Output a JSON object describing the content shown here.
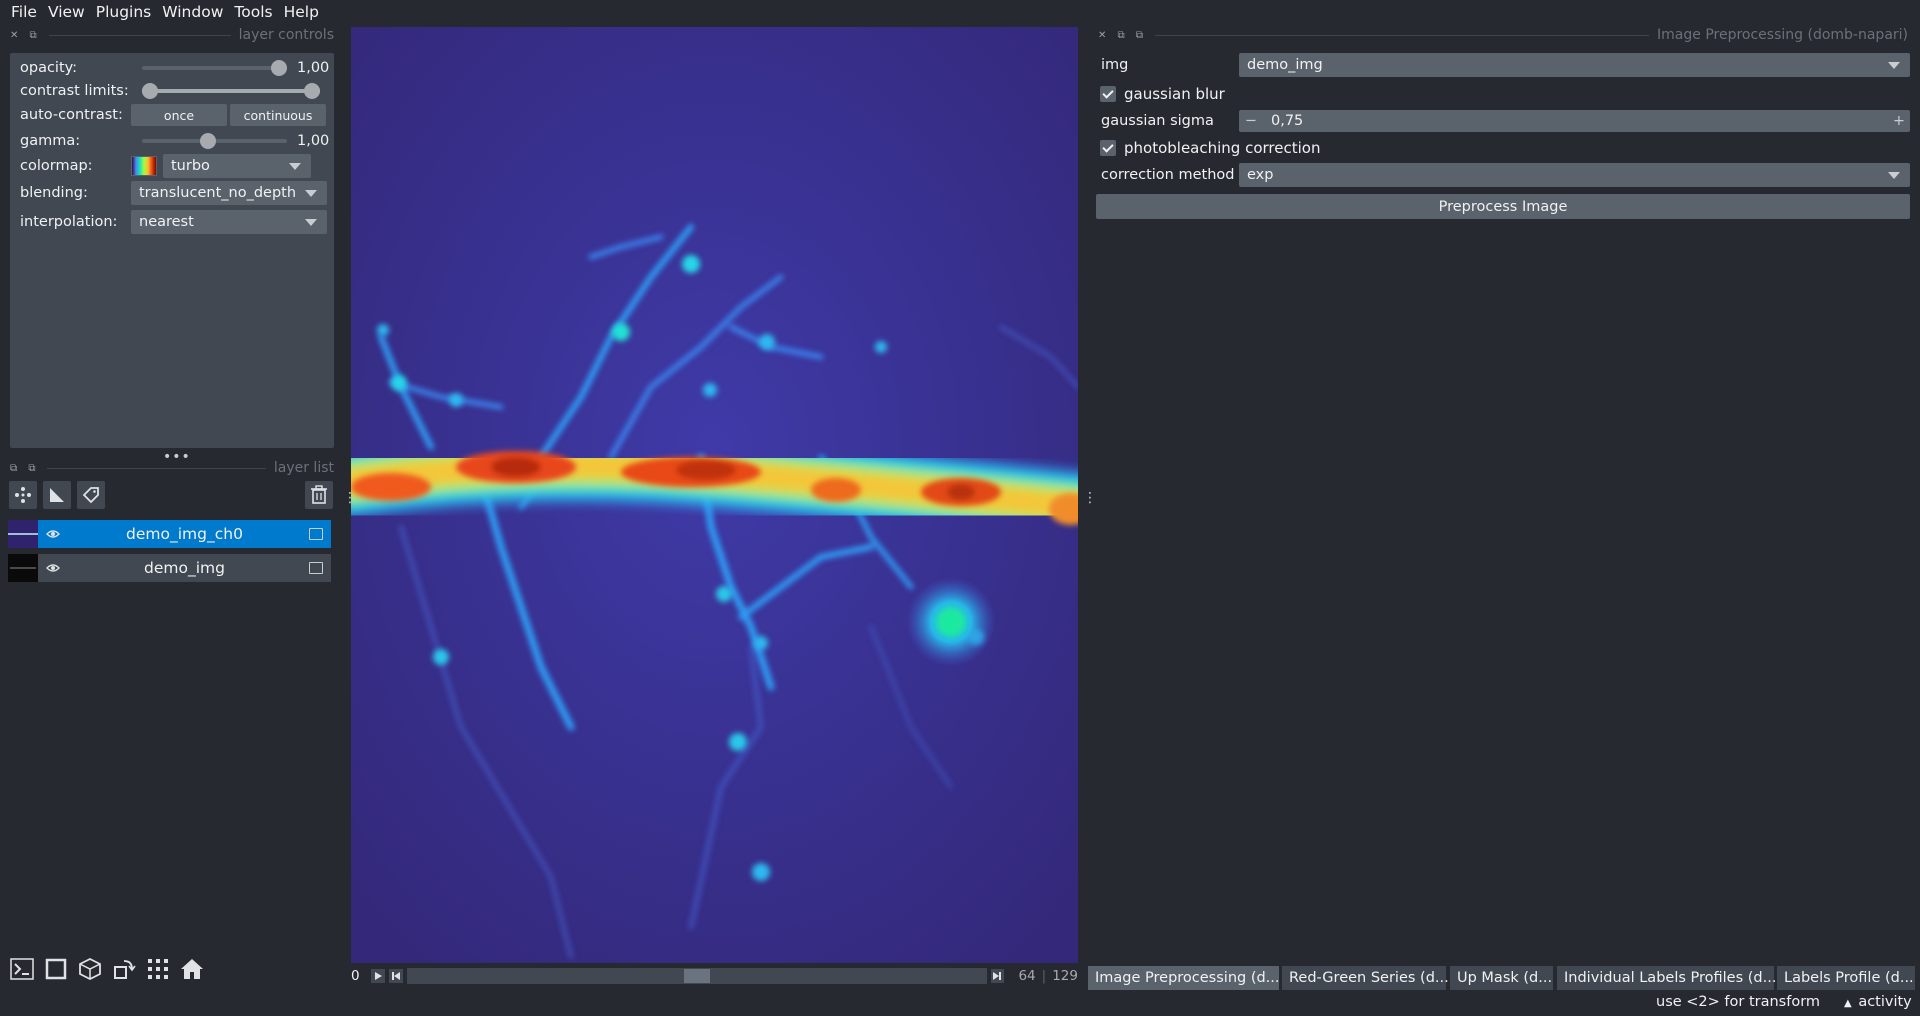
{
  "menu": [
    "File",
    "View",
    "Plugins",
    "Window",
    "Tools",
    "Help"
  ],
  "layer_controls": {
    "title": "layer controls",
    "opacity": {
      "label": "opacity:",
      "value": "1,00",
      "fraction": 1.0
    },
    "contrast_limits": {
      "label": "contrast limits:",
      "low_fraction": 0.0,
      "high_fraction": 1.0
    },
    "auto_contrast": {
      "label": "auto-contrast:",
      "once": "once",
      "continuous": "continuous"
    },
    "gamma": {
      "label": "gamma:",
      "value": "1,00",
      "fraction": 0.45
    },
    "colormap": {
      "label": "colormap:",
      "value": "turbo"
    },
    "blending": {
      "label": "blending:",
      "value": "translucent_no_depth"
    },
    "interpolation": {
      "label": "interpolation:",
      "value": "nearest"
    }
  },
  "layer_list": {
    "title": "layer list",
    "layers": [
      {
        "name": "demo_img_ch0",
        "selected": true,
        "visible": true
      },
      {
        "name": "demo_img",
        "selected": false,
        "visible": true
      }
    ]
  },
  "dims": {
    "current": "0",
    "value": "64",
    "max": "129",
    "fraction": 0.5
  },
  "plugin": {
    "title": "Image Preprocessing (domb-napari)",
    "img_label": "img",
    "img_value": "demo_img",
    "gaussian_blur_label": "gaussian blur",
    "gaussian_blur_checked": true,
    "gaussian_sigma_label": "gaussian sigma",
    "gaussian_sigma_value": "0,75",
    "minus": "−",
    "plus": "+",
    "photobleaching_label": "photobleaching correction",
    "photobleaching_checked": true,
    "correction_method_label": "correction method",
    "correction_method_value": "exp",
    "preprocess_button": "Preprocess Image"
  },
  "dock_tabs": [
    {
      "label": "Image Preprocessing (d...",
      "active": true
    },
    {
      "label": "Red-Green Series (d...",
      "active": false
    },
    {
      "label": "Up Mask (d...",
      "active": false
    },
    {
      "label": "Individual Labels Profiles (d...",
      "active": false
    },
    {
      "label": "Labels Profile (d...",
      "active": false
    }
  ],
  "status": {
    "hint": "use <2> for transform",
    "activity": "activity"
  },
  "colors": {
    "background": "#262930",
    "panel": "#414851",
    "control": "#5a626c",
    "selected_layer": "#007acc",
    "text": "#f0f1f2"
  },
  "icons": {
    "new_points": "points-icon",
    "new_shapes": "shapes-icon",
    "new_labels": "labels-icon",
    "delete_layer": "trash-icon",
    "console": "console-icon",
    "ndisplay": "square-icon",
    "roll": "cube-icon",
    "transpose": "transpose-icon",
    "grid": "grid-icon",
    "home": "home-icon"
  }
}
